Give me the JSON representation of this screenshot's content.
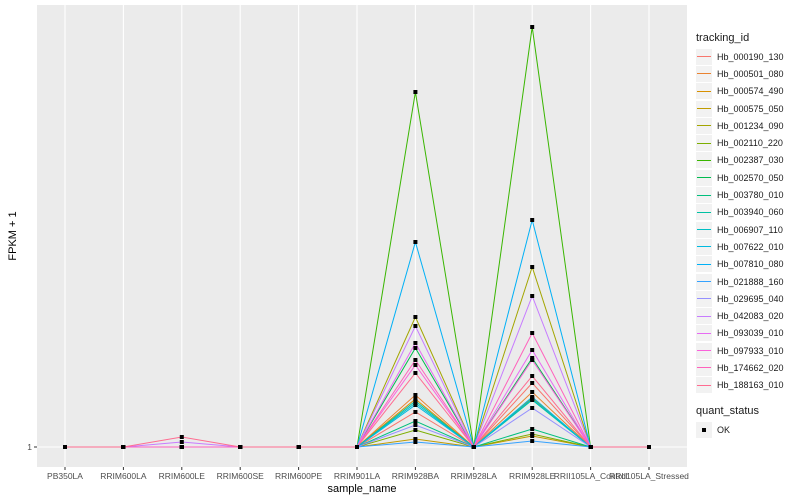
{
  "chart_data": {
    "type": "line",
    "xlabel": "sample_name",
    "ylabel": "FPKM + 1",
    "y_ticks": [
      "1"
    ],
    "y_tick_values": [
      1
    ],
    "ylim": [
      -1,
      45.2
    ],
    "grid": true,
    "legend_placement": "right",
    "categories": [
      "PB350LA",
      "RRIM600LA",
      "RRIM600LE",
      "RRIM600SE",
      "RRIM600PE",
      "RRIM901LA",
      "RRIM928BA",
      "RRIM928LA",
      "RRIM928LE",
      "RRII105LA_Control",
      "RRII105LA_Stressed"
    ],
    "color_legend_title": "tracking_id",
    "shape_legend_title": "quant_status",
    "shape_legend_items": [
      "OK"
    ],
    "series": [
      {
        "name": "Hb_000190_130",
        "color": "#F8766D",
        "values": [
          1,
          1,
          1,
          1,
          1,
          1,
          4.5,
          1,
          7.4,
          1,
          1
        ]
      },
      {
        "name": "Hb_000501_080",
        "color": "#EA8331",
        "values": [
          1,
          1,
          1,
          1,
          1,
          1,
          6.2,
          1,
          6.5,
          1,
          1
        ]
      },
      {
        "name": "Hb_000574_490",
        "color": "#D89000",
        "values": [
          1,
          1,
          1,
          1,
          1,
          1,
          5.8,
          1,
          5.9,
          1,
          1
        ]
      },
      {
        "name": "Hb_000575_050",
        "color": "#C09B00",
        "values": [
          1,
          1,
          1,
          1,
          1,
          1,
          1.8,
          1,
          2.1,
          1,
          1
        ]
      },
      {
        "name": "Hb_001234_090",
        "color": "#A3A500",
        "values": [
          1,
          1,
          1,
          1,
          1,
          1,
          14.0,
          1,
          19.0,
          1,
          1
        ]
      },
      {
        "name": "Hb_002110_220",
        "color": "#7CAE00",
        "values": [
          1,
          1,
          1,
          1,
          1,
          1,
          2.7,
          1,
          2.3,
          1,
          1
        ]
      },
      {
        "name": "Hb_002387_030",
        "color": "#39B600",
        "values": [
          1,
          1,
          1,
          1,
          1,
          1,
          36.5,
          1,
          43.0,
          1,
          1
        ]
      },
      {
        "name": "Hb_002570_050",
        "color": "#00BB4E",
        "values": [
          1,
          1,
          1,
          1,
          1,
          1,
          10.9,
          1,
          9.9,
          1,
          1
        ]
      },
      {
        "name": "Hb_003780_010",
        "color": "#00BF7D",
        "values": [
          1,
          1,
          1,
          1,
          1,
          1,
          3.6,
          1,
          2.8,
          1,
          1
        ]
      },
      {
        "name": "Hb_003940_060",
        "color": "#00C1A3",
        "values": [
          1,
          1,
          1,
          1,
          1,
          1,
          5.6,
          1,
          5.7,
          1,
          1
        ]
      },
      {
        "name": "Hb_006907_110",
        "color": "#00BFC4",
        "values": [
          1,
          1,
          1,
          1,
          1,
          1,
          5.4,
          1,
          5.8,
          1,
          1
        ]
      },
      {
        "name": "Hb_007622_010",
        "color": "#00BAE0",
        "values": [
          1,
          1,
          1,
          1,
          1,
          1,
          5.2,
          1,
          6.0,
          1,
          1
        ]
      },
      {
        "name": "Hb_007810_080",
        "color": "#00B0F6",
        "values": [
          1,
          1,
          1,
          1,
          1,
          1,
          21.5,
          1,
          23.7,
          1,
          1
        ]
      },
      {
        "name": "Hb_021888_160",
        "color": "#35A2FF",
        "values": [
          1,
          1,
          1,
          1,
          1,
          1,
          1.5,
          1,
          1.6,
          1,
          1
        ]
      },
      {
        "name": "Hb_029695_040",
        "color": "#9590FF",
        "values": [
          1,
          1,
          1,
          1,
          1,
          1,
          3.2,
          1,
          4.9,
          1,
          1
        ]
      },
      {
        "name": "Hb_042083_020",
        "color": "#C77CFF",
        "values": [
          1,
          1,
          1.5,
          1,
          1,
          1,
          13.1,
          1,
          16.1,
          1,
          1
        ]
      },
      {
        "name": "Hb_093039_010",
        "color": "#E76BF3",
        "values": [
          1,
          1,
          1,
          1,
          1,
          1,
          11.4,
          1,
          10.7,
          1,
          1
        ]
      },
      {
        "name": "Hb_097933_010",
        "color": "#FA62DB",
        "values": [
          1,
          1,
          1,
          1,
          1,
          1,
          9.2,
          1,
          9.7,
          1,
          1
        ]
      },
      {
        "name": "Hb_174662_020",
        "color": "#FF62BC",
        "values": [
          1,
          1,
          1,
          1,
          1,
          1,
          9.7,
          1,
          12.4,
          1,
          1
        ]
      },
      {
        "name": "Hb_188163_010",
        "color": "#FF6C91",
        "values": [
          1,
          1,
          2.0,
          1,
          1,
          1,
          8.4,
          1,
          8.1,
          1,
          1
        ]
      }
    ]
  }
}
